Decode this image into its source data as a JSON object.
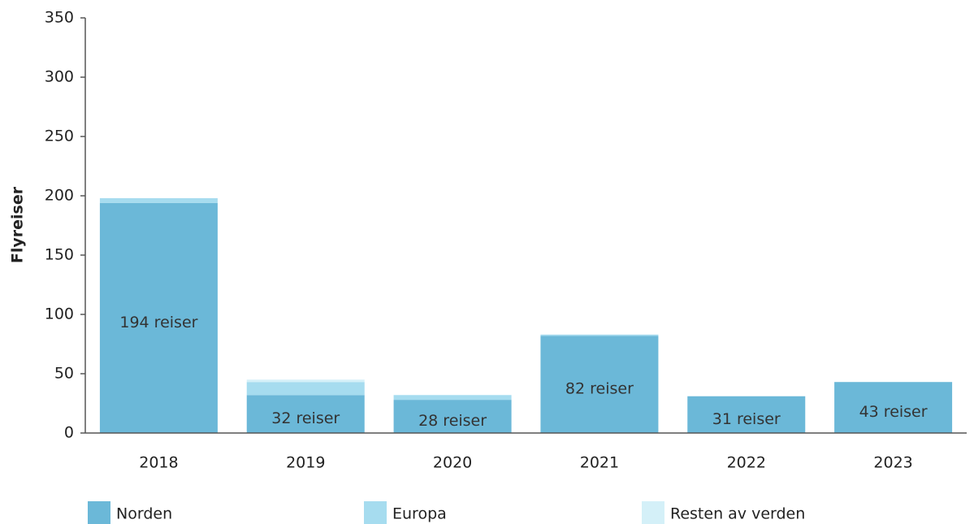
{
  "chart_data": {
    "type": "stacked_bar",
    "y_label": "Flyreiser",
    "categories": [
      "2018",
      "2019",
      "2020",
      "2021",
      "2022",
      "2023"
    ],
    "series": [
      {
        "name": "Norden",
        "color": "#6bb8d8",
        "values": [
          194,
          32,
          28,
          82,
          31,
          43
        ],
        "value_labels": [
          "194 reiser",
          "32 reiser",
          "28 reiser",
          "82 reiser",
          "31 reiser",
          "43 reiser"
        ]
      },
      {
        "name": "Europa",
        "color": "#a6dcef",
        "values": [
          4,
          11,
          4,
          1,
          0,
          0
        ]
      },
      {
        "name": "Resten av verden",
        "color": "#d4f0f8",
        "values": [
          0,
          2,
          0,
          0,
          0,
          0
        ]
      }
    ],
    "ylim": [
      0,
      350
    ],
    "yticks": [
      0,
      50,
      100,
      150,
      200,
      250,
      300,
      350
    ],
    "legend": "bottom"
  }
}
